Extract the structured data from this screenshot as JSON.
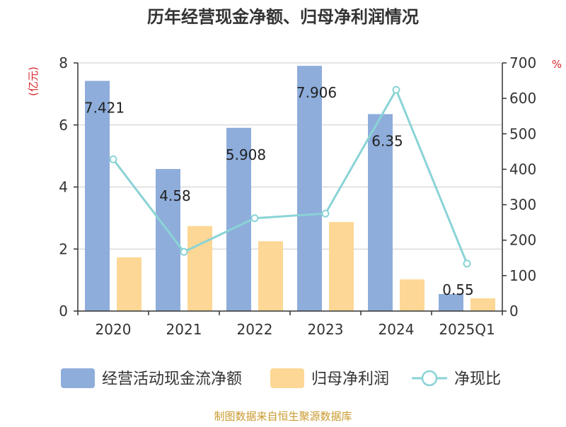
{
  "title": "历年经营现金净额、归母净利润情况",
  "left_axis_unit": "(亿元)",
  "right_axis_unit": "%",
  "source_note": "制图数据来自恒生聚源数据库",
  "colors": {
    "bar_cash": "#8EADDB",
    "bar_profit": "#FDD795",
    "line_ratio": "#8AD3D6",
    "title": "#333333",
    "axis_unit": "#D9262C",
    "source_note": "#C99A2E"
  },
  "chart_data": {
    "type": "bar",
    "categories": [
      "2020",
      "2021",
      "2022",
      "2023",
      "2024",
      "2025Q1"
    ],
    "series": [
      {
        "name": "经营活动现金流净额",
        "axis": "left",
        "values": [
          7.421,
          4.58,
          5.908,
          7.906,
          6.35,
          0.55
        ],
        "data_labels": [
          "7.421",
          "4.58",
          "5.908",
          "7.906",
          "6.35",
          "0.55"
        ]
      },
      {
        "name": "归母净利润",
        "axis": "left",
        "values": [
          1.73,
          2.74,
          2.25,
          2.87,
          1.02,
          0.41
        ]
      },
      {
        "name": "净现比",
        "type": "line",
        "axis": "right",
        "values": [
          428,
          167,
          262,
          275,
          624,
          134
        ]
      }
    ],
    "y_left": {
      "min": 0,
      "max": 8,
      "ticks": [
        0,
        2,
        4,
        6,
        8
      ]
    },
    "y_right": {
      "min": 0,
      "max": 700,
      "ticks": [
        0,
        100,
        200,
        300,
        400,
        500,
        600,
        700
      ]
    },
    "grid": true,
    "legend_position": "bottom"
  }
}
